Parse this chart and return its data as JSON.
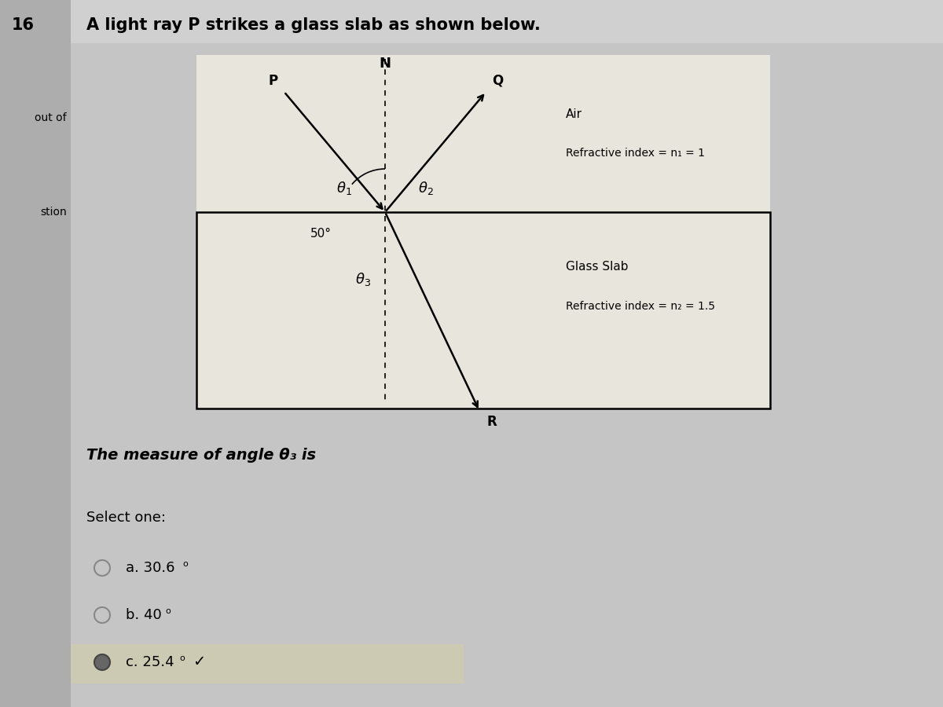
{
  "title": "A light ray P strikes a glass slab as shown below.",
  "question_number": "16",
  "side_label_top": "out of",
  "side_label_bottom": "stion",
  "bg_color": "#b8b8b8",
  "panel_bg": "#c0c0c0",
  "diagram_fill": "#e8e5dc",
  "question_text": "The measure of angle θ₃ is",
  "select_label": "Select one:",
  "air_label": "Air",
  "glass_label": "Glass Slab",
  "n1_label": "Refractive index = n₁ = 1",
  "n2_label": "Refractive index = n₂ = 1.5",
  "angle_50_label": "50°",
  "N_label": "N",
  "P_label": "P",
  "Q_label": "Q",
  "R_label": "R",
  "theta1_label": "θ₁",
  "theta2_label": "θ₂",
  "theta3_label": "θ₃",
  "font_color": "#000000",
  "font_size_title": 15,
  "font_size_num": 15,
  "font_size_labels": 11,
  "font_size_small": 10,
  "font_size_question": 14,
  "font_size_options": 13,
  "option_a": "a. 30.6",
  "option_b": "b. 40",
  "option_c": "c. 25.4"
}
